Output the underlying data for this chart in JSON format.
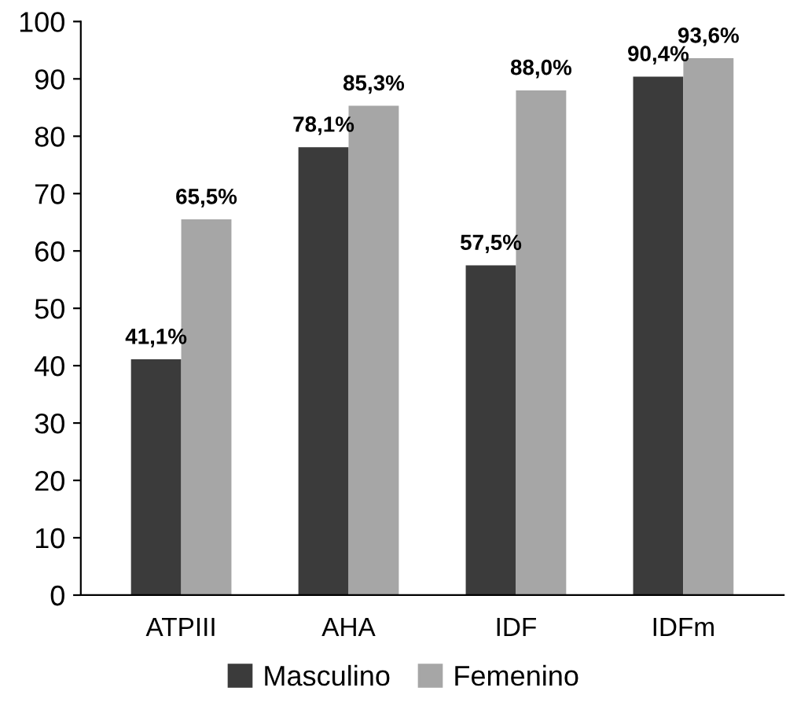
{
  "chart_data": {
    "type": "bar",
    "categories": [
      "ATPIII",
      "AHA",
      "IDF",
      "IDFm"
    ],
    "series": [
      {
        "name": "Masculino",
        "color": "#3b3b3b",
        "values": [
          41.1,
          78.1,
          57.5,
          90.4
        ],
        "value_labels": [
          "41,1%",
          "78,1%",
          "57,5%",
          "90,4%"
        ]
      },
      {
        "name": "Femenino",
        "color": "#a6a6a6",
        "values": [
          65.5,
          85.3,
          88.0,
          93.6
        ],
        "value_labels": [
          "65,5%",
          "85,3%",
          "88,0%",
          "93,6%"
        ]
      }
    ],
    "ylim": [
      0,
      100
    ],
    "yticks": [
      0,
      10,
      20,
      30,
      40,
      50,
      60,
      70,
      80,
      90,
      100
    ],
    "grid": false,
    "legend": "bottom"
  }
}
